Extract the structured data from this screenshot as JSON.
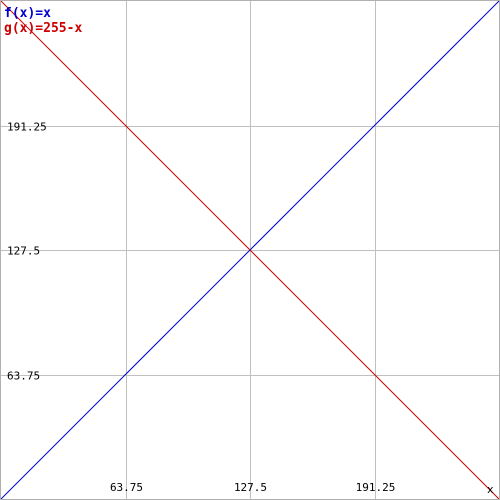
{
  "chart_data": {
    "type": "line",
    "x_range": [
      0,
      255
    ],
    "y_range": [
      0,
      255
    ],
    "grid": true,
    "xlabel": "",
    "ylabel": "",
    "x_ticks": [
      {
        "value": 63.75,
        "label": "63.75"
      },
      {
        "value": 127.5,
        "label": "127.5"
      },
      {
        "value": 191.25,
        "label": "191.25"
      }
    ],
    "y_ticks": [
      {
        "value": 63.75,
        "label": "63.75"
      },
      {
        "value": 127.5,
        "label": "127.5"
      },
      {
        "value": 191.25,
        "label": "191.25"
      }
    ],
    "x_axis_symbol": "x",
    "series": [
      {
        "name": "f(x)=x",
        "color": "#0000cc",
        "x": [
          0,
          255
        ],
        "y": [
          0,
          255
        ]
      },
      {
        "name": "g(x)=255-x",
        "color": "#cc0000",
        "x": [
          0,
          255
        ],
        "y": [
          255,
          0
        ]
      }
    ],
    "legend_position": "top-left"
  }
}
